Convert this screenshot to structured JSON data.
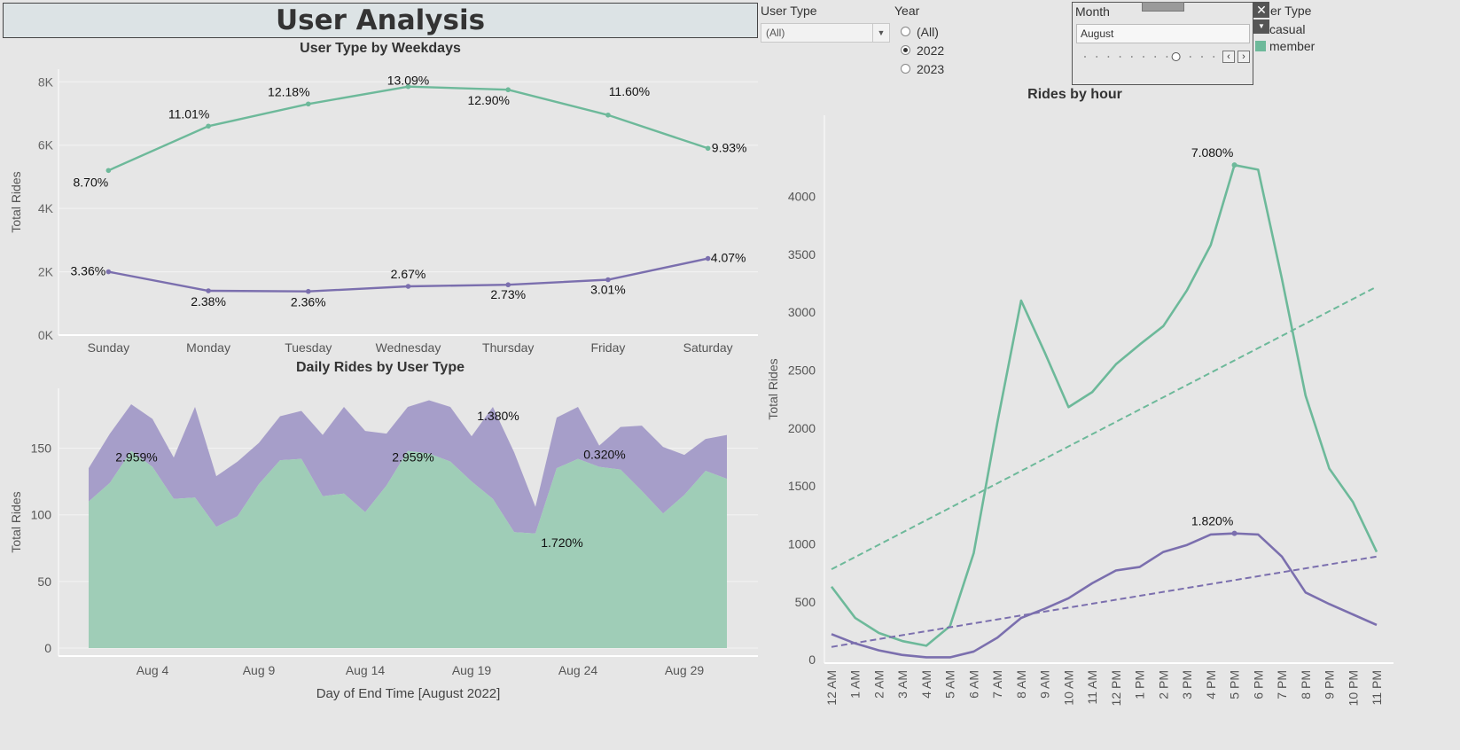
{
  "dashboard": {
    "title": "User Analysis"
  },
  "controls": {
    "user_type": {
      "label": "User Type",
      "selected": "(All)"
    },
    "year": {
      "label": "Year",
      "options": [
        {
          "label": "(All)",
          "selected": false
        },
        {
          "label": "2022",
          "selected": true
        },
        {
          "label": "2023",
          "selected": false
        }
      ]
    },
    "month": {
      "label": "Month",
      "value": "August",
      "slider_position": 0.5
    }
  },
  "legend": {
    "title": "er Type",
    "items": [
      {
        "label": "casual",
        "color": "#7b6fae"
      },
      {
        "label": "member",
        "color": "#6db99a"
      }
    ]
  },
  "colors": {
    "member": "#6db99a",
    "casual": "#7b6fae",
    "member_area": "#9fcdb7",
    "casual_area": "#a69ec9"
  },
  "chart_data": [
    {
      "id": "weekdays",
      "type": "line",
      "title": "User Type by Weekdays",
      "xlabel": "",
      "ylabel": "Total Rides",
      "categories": [
        "Sunday",
        "Monday",
        "Tuesday",
        "Wednesday",
        "Thursday",
        "Friday",
        "Saturday"
      ],
      "ylim": [
        0,
        8400
      ],
      "yticks": [
        {
          "v": 0,
          "label": "0K"
        },
        {
          "v": 2000,
          "label": "2K"
        },
        {
          "v": 4000,
          "label": "4K"
        },
        {
          "v": 6000,
          "label": "6K"
        },
        {
          "v": 8000,
          "label": "8K"
        }
      ],
      "series": [
        {
          "key": "member",
          "values": [
            5200,
            6600,
            7300,
            7850,
            7750,
            6950,
            5900
          ],
          "labels": [
            "8.70%",
            "11.01%",
            "12.18%",
            "13.09%",
            "12.90%",
            "11.60%",
            "9.93%"
          ]
        },
        {
          "key": "casual",
          "values": [
            2000,
            1400,
            1380,
            1540,
            1590,
            1750,
            2420
          ],
          "labels": [
            "3.36%",
            "2.38%",
            "2.36%",
            "2.67%",
            "2.73%",
            "3.01%",
            "4.07%"
          ]
        }
      ]
    },
    {
      "id": "daily",
      "type": "area",
      "title": "Daily Rides by User Type",
      "xlabel": "Day of End Time [August 2022]",
      "ylabel": "Total Rides",
      "x": [
        1,
        2,
        3,
        4,
        5,
        6,
        7,
        8,
        9,
        10,
        11,
        12,
        13,
        14,
        15,
        16,
        17,
        18,
        19,
        20,
        21,
        22,
        23,
        24,
        25,
        26,
        27,
        28,
        29,
        30,
        31
      ],
      "xticks": [
        {
          "v": 4,
          "label": "Aug 4"
        },
        {
          "v": 9,
          "label": "Aug 9"
        },
        {
          "v": 14,
          "label": "Aug 14"
        },
        {
          "v": 19,
          "label": "Aug 19"
        },
        {
          "v": 24,
          "label": "Aug 24"
        },
        {
          "v": 29,
          "label": "Aug 29"
        }
      ],
      "ylim": [
        -6,
        195
      ],
      "yticks": [
        {
          "v": 0,
          "label": "0"
        },
        {
          "v": 50,
          "label": "50"
        },
        {
          "v": 100,
          "label": "100"
        },
        {
          "v": 150,
          "label": "150"
        }
      ],
      "series": [
        {
          "key": "member",
          "values": [
            110,
            124,
            148,
            136,
            112,
            113,
            91,
            99,
            123,
            141,
            142,
            114,
            116,
            102,
            122,
            148,
            146,
            140,
            125,
            112,
            87,
            86,
            135,
            142,
            136,
            134,
            118,
            101,
            115,
            133,
            127
          ]
        },
        {
          "key": "total",
          "values": [
            135,
            161,
            183,
            172,
            143,
            181,
            129,
            140,
            154,
            174,
            178,
            160,
            181,
            163,
            161,
            181,
            186,
            181,
            159,
            181,
            147,
            106,
            173,
            181,
            152,
            166,
            167,
            151,
            145,
            157,
            160
          ]
        }
      ],
      "annotations": [
        {
          "x": 3,
          "y": 140,
          "label": "2.959%"
        },
        {
          "x": 16,
          "y": 140,
          "label": "2.959%"
        },
        {
          "x": 20,
          "y": 171,
          "label": "1.380%"
        },
        {
          "x": 25,
          "y": 142,
          "label": "0.320%"
        },
        {
          "x": 23,
          "y": 76,
          "label": "1.720%"
        }
      ]
    },
    {
      "id": "hourly",
      "type": "line",
      "title": "Rides by hour",
      "xlabel": "",
      "ylabel": "Total Rides",
      "categories": [
        "12 AM",
        "1 AM",
        "2 AM",
        "3 AM",
        "4 AM",
        "5 AM",
        "6 AM",
        "7 AM",
        "8 AM",
        "9 AM",
        "10 AM",
        "11 AM",
        "12 PM",
        "1 PM",
        "2 PM",
        "3 PM",
        "4 PM",
        "5 PM",
        "6 PM",
        "7 PM",
        "8 PM",
        "9 PM",
        "10 PM",
        "11 PM"
      ],
      "ylim": [
        -30,
        4700
      ],
      "yticks": [
        {
          "v": 0,
          "label": "0"
        },
        {
          "v": 500,
          "label": "500"
        },
        {
          "v": 1000,
          "label": "1000"
        },
        {
          "v": 1500,
          "label": "1500"
        },
        {
          "v": 2000,
          "label": "2000"
        },
        {
          "v": 2500,
          "label": "2500"
        },
        {
          "v": 3000,
          "label": "3000"
        },
        {
          "v": 3500,
          "label": "3500"
        },
        {
          "v": 4000,
          "label": "4000"
        }
      ],
      "series": [
        {
          "key": "member",
          "values": [
            630,
            360,
            230,
            160,
            120,
            290,
            920,
            2050,
            3100,
            2650,
            2180,
            2310,
            2550,
            2720,
            2880,
            3190,
            3580,
            4270,
            4230,
            3290,
            2280,
            1650,
            1360,
            930
          ],
          "trend": [
            780,
            3220
          ],
          "peak": {
            "index": 17,
            "label": "7.080%"
          }
        },
        {
          "key": "casual",
          "values": [
            220,
            140,
            80,
            40,
            20,
            20,
            70,
            190,
            360,
            440,
            530,
            660,
            770,
            800,
            930,
            990,
            1080,
            1090,
            1080,
            890,
            580,
            480,
            390,
            300
          ],
          "trend": [
            110,
            890
          ],
          "peak": {
            "index": 17,
            "label": "1.820%"
          }
        }
      ]
    }
  ]
}
